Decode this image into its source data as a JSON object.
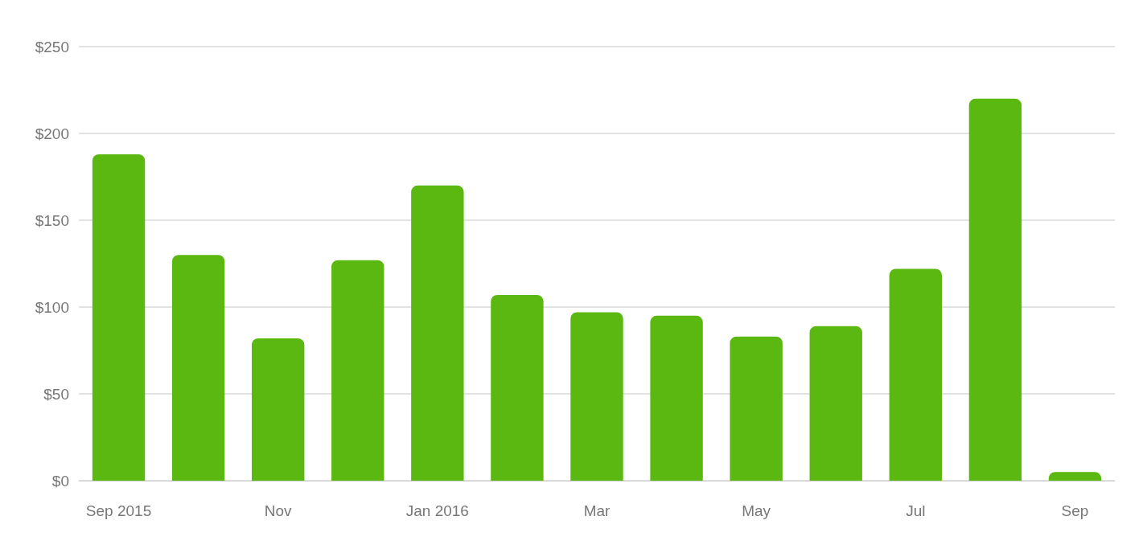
{
  "chart_data": {
    "type": "bar",
    "categories": [
      "Sep 2015",
      null,
      "Nov",
      null,
      "Jan 2016",
      null,
      "Mar",
      null,
      "May",
      null,
      "Jul",
      null,
      "Sep"
    ],
    "values": [
      188,
      130,
      82,
      127,
      170,
      107,
      97,
      95,
      83,
      89,
      122,
      220,
      5
    ],
    "color": "#5ab811",
    "ylim": [
      0,
      250
    ],
    "yticks": [
      {
        "value": 0,
        "label": "$0"
      },
      {
        "value": 50,
        "label": "$50"
      },
      {
        "value": 100,
        "label": "$100"
      },
      {
        "value": 150,
        "label": "$150"
      },
      {
        "value": 200,
        "label": "$200"
      },
      {
        "value": 250,
        "label": "$250"
      }
    ],
    "grid": "y"
  }
}
